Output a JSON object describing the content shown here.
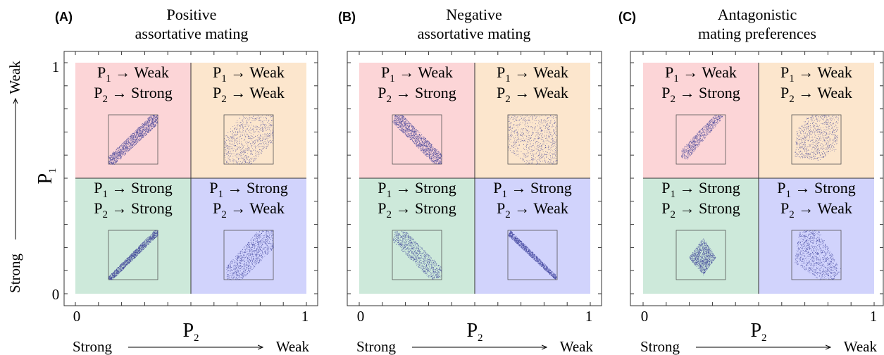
{
  "panels": [
    {
      "letter": "(A)",
      "title_lines": [
        "Positive",
        "assortative mating"
      ],
      "quadrants": [
        {
          "position": "top-left",
          "color": "#fcd5d7",
          "lines": [
            [
              "P",
              "1",
              " → Weak"
            ],
            [
              "P",
              "2",
              " → Strong"
            ]
          ],
          "cloud": "band-pos",
          "cloud_color": "#2b2f8f",
          "density": "dense"
        },
        {
          "position": "top-right",
          "color": "#fce6cd",
          "lines": [
            [
              "P",
              "1",
              " → Weak"
            ],
            [
              "P",
              "2",
              " → Weak"
            ]
          ],
          "cloud": "wide-pos",
          "cloud_color": "#2b2f8f",
          "density": "sparse"
        },
        {
          "position": "bottom-left",
          "color": "#cde9da",
          "lines": [
            [
              "P",
              "1",
              " → Strong"
            ],
            [
              "P",
              "2",
              " → Strong"
            ]
          ],
          "cloud": "thin-pos",
          "cloud_color": "#2b2f8f",
          "density": "dense"
        },
        {
          "position": "bottom-right",
          "color": "#d1d3fc",
          "lines": [
            [
              "P",
              "1",
              " → Strong"
            ],
            [
              "P",
              "2",
              " → Weak"
            ]
          ],
          "cloud": "band-pos-wide",
          "cloud_color": "#2b2f8f",
          "density": "medium"
        }
      ]
    },
    {
      "letter": "(B)",
      "title_lines": [
        "Negative",
        "assortative mating"
      ],
      "quadrants": [
        {
          "position": "top-left",
          "color": "#fcd5d7",
          "lines": [
            [
              "P",
              "1",
              " → Weak"
            ],
            [
              "P",
              "2",
              " → Strong"
            ]
          ],
          "cloud": "band-neg",
          "cloud_color": "#2b2f8f",
          "density": "dense"
        },
        {
          "position": "top-right",
          "color": "#fce6cd",
          "lines": [
            [
              "P",
              "1",
              " → Weak"
            ],
            [
              "P",
              "2",
              " → Weak"
            ]
          ],
          "cloud": "wide-neg",
          "cloud_color": "#2b2f8f",
          "density": "sparse"
        },
        {
          "position": "bottom-left",
          "color": "#cde9da",
          "lines": [
            [
              "P",
              "1",
              " → Strong"
            ],
            [
              "P",
              "2",
              " → Strong"
            ]
          ],
          "cloud": "oval-neg",
          "cloud_color": "#2b2f8f",
          "density": "medium"
        },
        {
          "position": "bottom-right",
          "color": "#d1d3fc",
          "lines": [
            [
              "P",
              "1",
              " → Strong"
            ],
            [
              "P",
              "2",
              " → Weak"
            ]
          ],
          "cloud": "thin-neg",
          "cloud_color": "#2b2f8f",
          "density": "dense"
        }
      ]
    },
    {
      "letter": "(C)",
      "title_lines": [
        "Antagonistic",
        "mating preferences"
      ],
      "quadrants": [
        {
          "position": "top-left",
          "color": "#fcd5d7",
          "lines": [
            [
              "P",
              "1",
              " → Weak"
            ],
            [
              "P",
              "2",
              " → Strong"
            ]
          ],
          "cloud": "band-pos-short",
          "cloud_color": "#2b2f8f",
          "density": "sparse"
        },
        {
          "position": "top-right",
          "color": "#fce6cd",
          "lines": [
            [
              "P",
              "1",
              " → Weak"
            ],
            [
              "P",
              "2",
              " → Weak"
            ]
          ],
          "cloud": "blob",
          "cloud_color": "#2b2f8f",
          "density": "sparse"
        },
        {
          "position": "bottom-left",
          "color": "#cde9da",
          "lines": [
            [
              "P",
              "1",
              " → Strong"
            ],
            [
              "P",
              "2",
              " → Strong"
            ]
          ],
          "cloud": "diamond",
          "cloud_color": "#2b2f8f",
          "density": "medium"
        },
        {
          "position": "bottom-right",
          "color": "#d1d3fc",
          "lines": [
            [
              "P",
              "1",
              " → Strong"
            ],
            [
              "P",
              "2",
              " → Weak"
            ]
          ],
          "cloud": "band-neg-wide",
          "cloud_color": "#2b2f8f",
          "density": "medium"
        }
      ]
    }
  ],
  "y_axis": {
    "symbol": "P",
    "subscript": "1",
    "tick_low": "0",
    "tick_high": "1",
    "low_word": "Strong",
    "high_word": "Weak"
  },
  "x_axis": {
    "symbol": "P",
    "subscript": "2",
    "tick_low": "0",
    "tick_high": "1",
    "low_word": "Strong",
    "high_word": "Weak"
  }
}
